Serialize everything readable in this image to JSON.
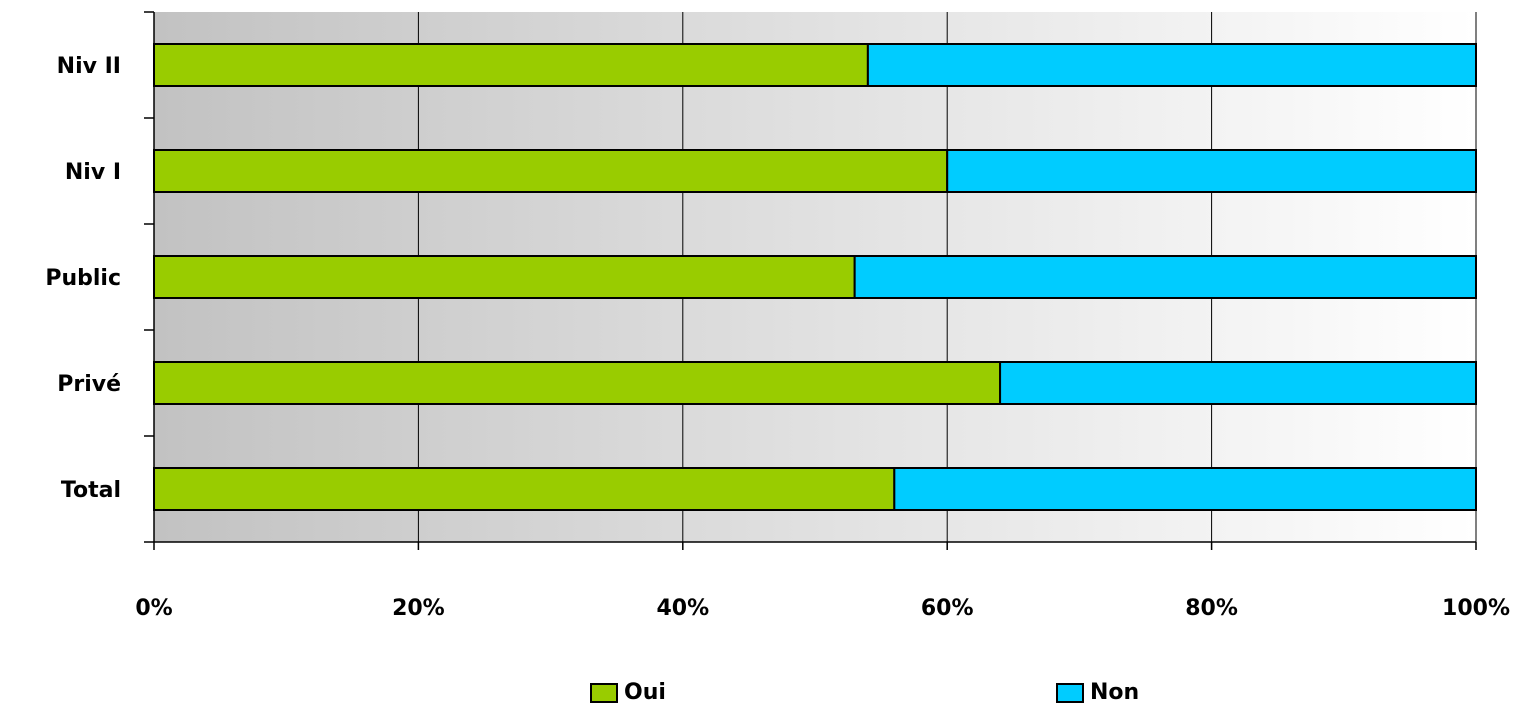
{
  "chart_data": {
    "type": "bar",
    "orientation": "horizontal",
    "stacked": true,
    "percent_stacked": true,
    "categories": [
      "Niv II",
      "Niv I",
      "Public",
      "Privé",
      "Total"
    ],
    "series": [
      {
        "name": "Oui",
        "color": "#99cc00",
        "values": [
          54,
          60,
          53,
          64,
          56
        ]
      },
      {
        "name": "Non",
        "color": "#00ccff",
        "values": [
          46,
          40,
          47,
          36,
          44
        ]
      }
    ],
    "x_ticks": [
      "0%",
      "20%",
      "40%",
      "60%",
      "80%",
      "100%"
    ],
    "xlim": [
      0,
      100
    ],
    "grid": true,
    "legend_position": "bottom",
    "background": "gradient grey to white"
  }
}
